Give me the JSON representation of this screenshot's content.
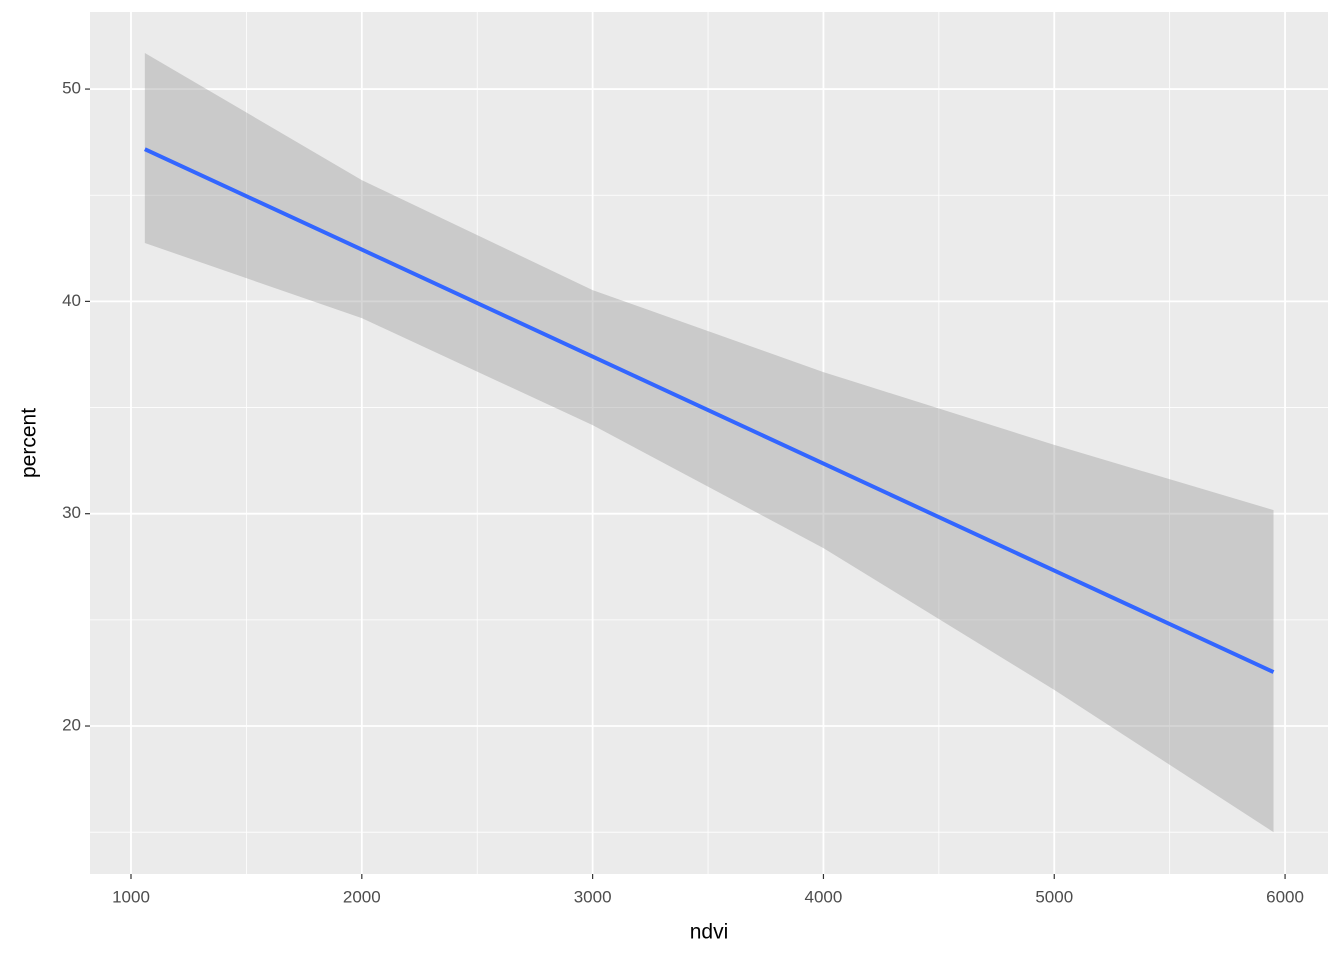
{
  "chart_data": {
    "type": "line",
    "x_label": "ndvi",
    "y_label": "percent",
    "x": [
      1060,
      2000,
      3000,
      4000,
      5000,
      5950
    ],
    "fit": [
      47.17,
      42.44,
      37.4,
      32.36,
      27.32,
      22.54
    ],
    "lower": [
      42.75,
      39.21,
      34.17,
      28.38,
      21.7,
      15.0
    ],
    "upper": [
      51.7,
      45.71,
      40.53,
      36.67,
      33.24,
      30.17
    ],
    "line_color": "#3366ff",
    "band_color": "#999999",
    "xlim": [
      822.4,
      6186
    ],
    "ylim": [
      13.03,
      53.63
    ],
    "xticks": [
      1000,
      2000,
      3000,
      4000,
      5000,
      6000
    ],
    "yticks": [
      20,
      30,
      40,
      50
    ],
    "x_minor_grid": [
      1500,
      2500,
      3500,
      4500,
      5500
    ],
    "y_minor_grid": [
      15,
      25,
      35,
      45
    ],
    "grid": true
  }
}
